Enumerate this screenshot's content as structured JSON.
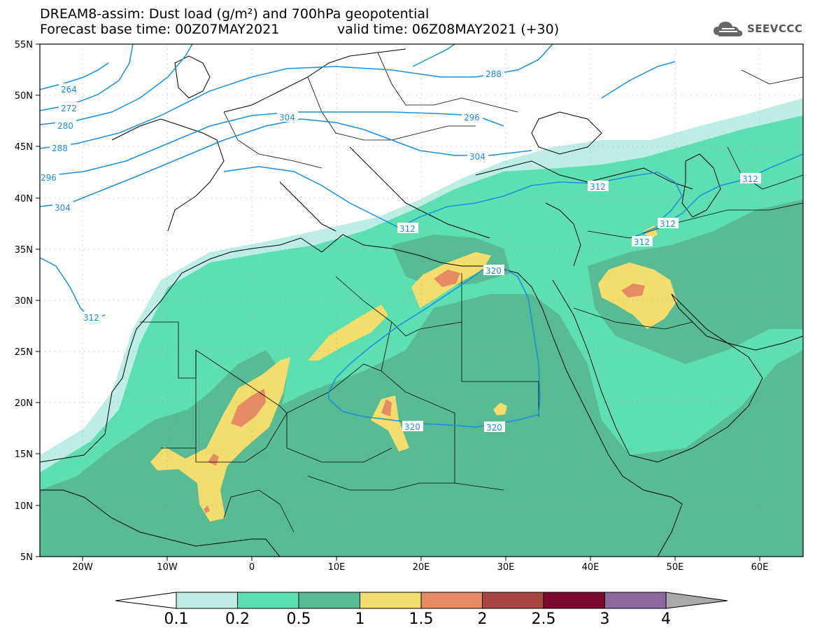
{
  "title": {
    "line1": "DREAM8-assim: Dust load (g/m²) and 700hPa geopotential",
    "line2": "Forecast base time: 00Z07MAY2021",
    "valid": "valid time: 06Z08MAY2021 (+30)"
  },
  "logo": {
    "icon": "cloud-logo-icon",
    "text": "SEEVCCC"
  },
  "axes": {
    "lon_labels": [
      "20W",
      "10W",
      "0",
      "10E",
      "20E",
      "30E",
      "40E",
      "50E",
      "60E"
    ],
    "lat_labels": [
      "55N",
      "50N",
      "45N",
      "40N",
      "35N",
      "30N",
      "25N",
      "20N",
      "15N",
      "10N",
      "5N"
    ],
    "lon_range": [
      -25,
      65
    ],
    "lat_range": [
      5,
      55
    ]
  },
  "colorbar": {
    "ticks": [
      "0.1",
      "0.2",
      "0.5",
      "1",
      "1.5",
      "2",
      "2.5",
      "3",
      "4"
    ],
    "colors": [
      "#ffffff",
      "#bdeee6",
      "#5edfb2",
      "#58bb93",
      "#f3de6d",
      "#e68c64",
      "#a8473f",
      "#7e0b2f",
      "#8c6aa0",
      "#a9a9a9"
    ]
  },
  "contours": {
    "color": "#1a8fe0",
    "labels": [
      "264",
      "272",
      "280",
      "288",
      "296",
      "304",
      "312",
      "320"
    ],
    "map_labels": [
      {
        "text": "264"
      },
      {
        "text": "272"
      },
      {
        "text": "280"
      },
      {
        "text": "288"
      },
      {
        "text": "296"
      },
      {
        "text": "304"
      },
      {
        "text": "312"
      },
      {
        "text": "288"
      },
      {
        "text": "296"
      },
      {
        "text": "304"
      },
      {
        "text": "304"
      },
      {
        "text": "312"
      },
      {
        "text": "312"
      },
      {
        "text": "312"
      },
      {
        "text": "312"
      },
      {
        "text": "312"
      },
      {
        "text": "320"
      },
      {
        "text": "320"
      },
      {
        "text": "320"
      }
    ]
  }
}
